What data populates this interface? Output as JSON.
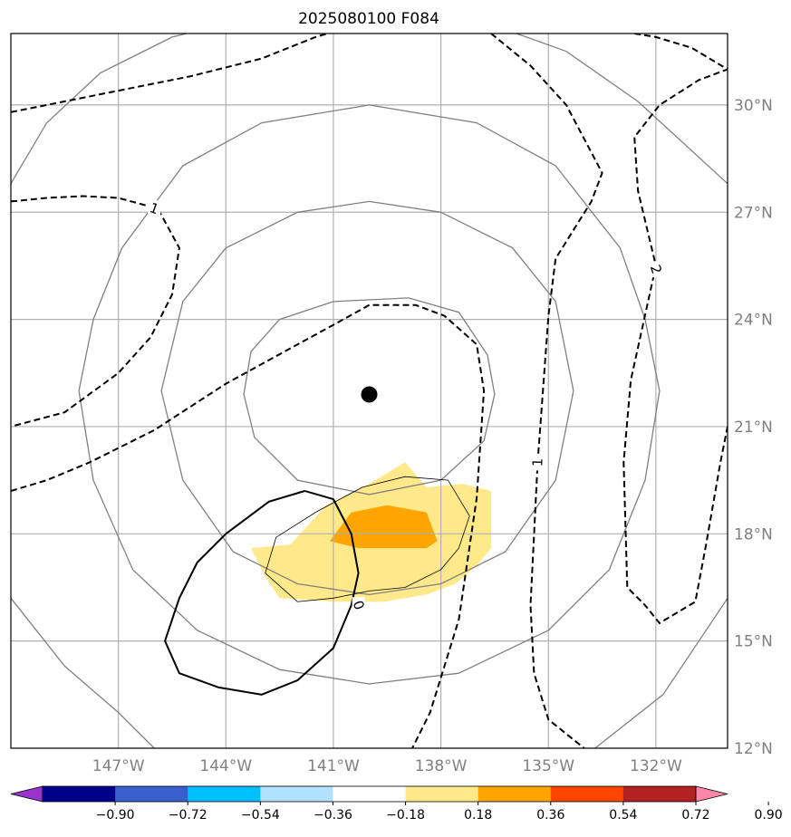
{
  "title": "2025080100 F084",
  "chart_data": {
    "type": "contour",
    "title": "2025080100 F084",
    "projection": "lat-lon map",
    "extent": {
      "lon": [
        -150,
        -130
      ],
      "lat": [
        12,
        32
      ]
    },
    "grid": true,
    "lon_ticks": [
      {
        "lon": -147,
        "label": "147°W"
      },
      {
        "lon": -144,
        "label": "144°W"
      },
      {
        "lon": -141,
        "label": "141°W"
      },
      {
        "lon": -138,
        "label": "138°W"
      },
      {
        "lon": -135,
        "label": "135°W"
      },
      {
        "lon": -132,
        "label": "132°W"
      }
    ],
    "lat_ticks": [
      {
        "lat": 12,
        "label": "12°N"
      },
      {
        "lat": 15,
        "label": "15°N"
      },
      {
        "lat": 18,
        "label": "18°N"
      },
      {
        "lat": 21,
        "label": "21°N"
      },
      {
        "lat": 24,
        "label": "24°N"
      },
      {
        "lat": 27,
        "label": "27°N"
      },
      {
        "lat": 30,
        "label": "30°N"
      }
    ],
    "center": {
      "lon": -140,
      "lat": 22
    },
    "range_rings": [
      {
        "ring": 1,
        "points": [
          [
            -138.9,
            24.6
          ],
          [
            -137.5,
            24.2
          ],
          [
            -136.7,
            23.0
          ],
          [
            -136.5,
            21.9
          ],
          [
            -136.8,
            20.6
          ],
          [
            -138.0,
            19.5
          ],
          [
            -140.0,
            19.1
          ],
          [
            -142.0,
            19.5
          ],
          [
            -143.2,
            20.7
          ],
          [
            -143.5,
            21.9
          ],
          [
            -143.3,
            23.1
          ],
          [
            -142.5,
            24.0
          ],
          [
            -141.0,
            24.5
          ]
        ]
      },
      {
        "ring": 2,
        "points": [
          [
            -140.0,
            27.3
          ],
          [
            -138.0,
            27.0
          ],
          [
            -136.0,
            26.0
          ],
          [
            -134.8,
            24.5
          ],
          [
            -134.3,
            22.0
          ],
          [
            -134.8,
            19.5
          ],
          [
            -136.2,
            17.5
          ],
          [
            -138.0,
            16.6
          ],
          [
            -140.0,
            16.3
          ],
          [
            -142.0,
            16.6
          ],
          [
            -143.8,
            17.5
          ],
          [
            -145.2,
            19.5
          ],
          [
            -145.8,
            22.0
          ],
          [
            -145.2,
            24.5
          ],
          [
            -144.0,
            26.0
          ],
          [
            -142.0,
            27.0
          ]
        ]
      },
      {
        "ring": 3,
        "points": [
          [
            -140.0,
            30.0
          ],
          [
            -137.0,
            29.5
          ],
          [
            -134.8,
            28.3
          ],
          [
            -133.0,
            26.0
          ],
          [
            -132.3,
            24.0
          ],
          [
            -131.9,
            22.0
          ],
          [
            -132.3,
            19.5
          ],
          [
            -133.3,
            17.0
          ],
          [
            -135.0,
            15.3
          ],
          [
            -137.5,
            14.1
          ],
          [
            -140.0,
            13.8
          ],
          [
            -142.5,
            14.2
          ],
          [
            -144.8,
            15.3
          ],
          [
            -146.6,
            17.0
          ],
          [
            -147.7,
            19.5
          ],
          [
            -148.1,
            22.0
          ],
          [
            -147.7,
            24.0
          ],
          [
            -146.9,
            26.0
          ],
          [
            -145.2,
            28.3
          ],
          [
            -143.0,
            29.5
          ]
        ]
      },
      {
        "ring": 4,
        "points": [
          [
            -140.0,
            32.7
          ],
          [
            -137.0,
            32.4
          ],
          [
            -134.5,
            31.5
          ],
          [
            -132.5,
            30.1
          ],
          [
            -130.0,
            27.8
          ]
        ],
        "closed": false
      },
      {
        "ring": 4.1,
        "points": [
          [
            -130.0,
            16.2
          ],
          [
            -131.8,
            13.5
          ],
          [
            -133.7,
            12.0
          ]
        ],
        "closed": false
      },
      {
        "ring": 4.2,
        "points": [
          [
            -150.0,
            27.8
          ],
          [
            -149.0,
            29.5
          ],
          [
            -147.5,
            30.9
          ],
          [
            -145.5,
            31.9
          ],
          [
            -143.5,
            32.4
          ],
          [
            -141.0,
            32.7
          ]
        ],
        "closed": false
      },
      {
        "ring": 4.3,
        "points": [
          [
            -150.0,
            16.2
          ],
          [
            -148.5,
            14.3
          ],
          [
            -147.0,
            13.0
          ],
          [
            -146.0,
            12.0
          ]
        ],
        "closed": false
      }
    ],
    "contours": [
      {
        "level": "1",
        "style": "dashed",
        "points": [
          [
            -150.0,
            27.3
          ],
          [
            -149.0,
            27.4
          ],
          [
            -148.0,
            27.45
          ],
          [
            -147.0,
            27.4
          ],
          [
            -145.9,
            27.1
          ],
          [
            -145.3,
            26.0
          ],
          [
            -145.5,
            24.7
          ],
          [
            -146.1,
            23.5
          ],
          [
            -147.0,
            22.5
          ],
          [
            -148.5,
            21.4
          ],
          [
            -150.0,
            21.0
          ]
        ]
      },
      {
        "level": "",
        "style": "dashed",
        "points": [
          [
            -150.0,
            29.8
          ],
          [
            -149.0,
            30.0
          ],
          [
            -147.0,
            30.4
          ],
          [
            -145.0,
            30.8
          ],
          [
            -143.0,
            31.3
          ],
          [
            -141.5,
            31.9
          ],
          [
            -139.5,
            32.5
          ]
        ]
      },
      {
        "level": "",
        "style": "dashed",
        "points": [
          [
            -150.0,
            19.2
          ],
          [
            -149.0,
            19.5
          ],
          [
            -147.8,
            20.0
          ],
          [
            -146.0,
            20.9
          ],
          [
            -144.0,
            22.2
          ],
          [
            -142.0,
            23.3
          ],
          [
            -140.9,
            23.9
          ],
          [
            -140.0,
            24.4
          ],
          [
            -138.7,
            24.4
          ],
          [
            -137.9,
            24.1
          ],
          [
            -137.0,
            23.3
          ],
          [
            -136.8,
            22.0
          ],
          [
            -137.0,
            19.0
          ],
          [
            -137.5,
            15.6
          ],
          [
            -138.3,
            13.0
          ],
          [
            -138.8,
            12.0
          ]
        ]
      },
      {
        "level": "1",
        "style": "dashed",
        "points": [
          [
            -136.6,
            32.0
          ],
          [
            -135.5,
            31.1
          ],
          [
            -134.5,
            30.0
          ],
          [
            -133.5,
            28.1
          ],
          [
            -133.8,
            27.3
          ],
          [
            -134.8,
            25.7
          ],
          [
            -135.0,
            24.1
          ],
          [
            -135.3,
            20.0
          ],
          [
            -135.5,
            16.0
          ],
          [
            -135.4,
            14.1
          ],
          [
            -135.0,
            12.8
          ],
          [
            -134.0,
            12.0
          ]
        ]
      },
      {
        "level": "2",
        "style": "dashed",
        "points": [
          [
            -132.6,
            32.0
          ],
          [
            -132.0,
            31.9
          ],
          [
            -131.0,
            31.6
          ],
          [
            -130.0,
            31.0
          ],
          [
            -130.8,
            30.7
          ],
          [
            -131.9,
            30.0
          ],
          [
            -132.6,
            29.1
          ],
          [
            -132.5,
            27.6
          ],
          [
            -132.0,
            25.5
          ],
          [
            -132.7,
            22.3
          ],
          [
            -132.9,
            20.0
          ],
          [
            -132.8,
            16.5
          ],
          [
            -132.3,
            16.0
          ],
          [
            -131.9,
            15.5
          ],
          [
            -130.9,
            16.1
          ],
          [
            -130.6,
            17.7
          ],
          [
            -130.2,
            20.0
          ],
          [
            -130.0,
            21.0
          ]
        ]
      },
      {
        "level": "0",
        "style": "solid",
        "points": [
          [
            -141.0,
            18.97
          ],
          [
            -140.5,
            18.0
          ],
          [
            -140.3,
            16.9
          ],
          [
            -140.5,
            16.0
          ],
          [
            -141.0,
            14.8
          ],
          [
            -142.0,
            13.9
          ],
          [
            -143.0,
            13.5
          ],
          [
            -144.2,
            13.7
          ],
          [
            -145.3,
            14.1
          ],
          [
            -145.7,
            15.0
          ],
          [
            -145.3,
            16.2
          ],
          [
            -144.8,
            17.2
          ],
          [
            -144.0,
            18.0
          ],
          [
            -142.8,
            18.9
          ],
          [
            -141.8,
            19.2
          ]
        ]
      },
      {
        "level": "",
        "style": "thin",
        "points": [
          [
            -142.0,
            16.1
          ],
          [
            -142.9,
            16.9
          ],
          [
            -142.6,
            17.9
          ],
          [
            -141.5,
            18.6
          ],
          [
            -140.2,
            19.3
          ],
          [
            -139.0,
            19.6
          ],
          [
            -137.8,
            19.5
          ],
          [
            -137.2,
            18.5
          ],
          [
            -137.5,
            17.6
          ],
          [
            -138.0,
            17.0
          ],
          [
            -139.0,
            16.5
          ],
          [
            -140.0,
            16.4
          ],
          [
            -141.0,
            16.2
          ]
        ]
      }
    ],
    "filled_regions": [
      {
        "range": [
          0.18,
          0.36
        ],
        "color": "#ffe98a",
        "points": [
          [
            -142.2,
            17.7
          ],
          [
            -141.2,
            18.8
          ],
          [
            -140.0,
            19.4
          ],
          [
            -139.0,
            20.0
          ],
          [
            -138.4,
            19.3
          ],
          [
            -137.4,
            19.4
          ],
          [
            -136.6,
            19.2
          ],
          [
            -136.6,
            17.6
          ],
          [
            -137.0,
            17.1
          ],
          [
            -137.6,
            16.6
          ],
          [
            -138.4,
            16.3
          ],
          [
            -139.6,
            16.1
          ],
          [
            -141.0,
            16.1
          ],
          [
            -142.5,
            16.2
          ],
          [
            -142.9,
            16.8
          ],
          [
            -143.3,
            17.6
          ]
        ]
      },
      {
        "range": [
          0.36,
          0.54
        ],
        "color": "#ffa500",
        "points": [
          [
            -141.1,
            17.8
          ],
          [
            -140.5,
            18.6
          ],
          [
            -139.5,
            18.8
          ],
          [
            -138.4,
            18.6
          ],
          [
            -138.1,
            17.8
          ],
          [
            -138.4,
            17.6
          ],
          [
            -139.3,
            17.6
          ],
          [
            -140.3,
            17.6
          ]
        ]
      }
    ],
    "center_marker": {
      "lon": -140.0,
      "lat": 21.9,
      "shape": "filled-circle",
      "color": "#000000"
    },
    "colorbar": {
      "labels": [
        "−0.90",
        "−0.72",
        "−0.54",
        "−0.36",
        "−0.18",
        "0.18",
        "0.36",
        "0.54",
        "0.72",
        "0.90"
      ],
      "colors": [
        "#9933cc",
        "#00008b",
        "#3a5fcd",
        "#00bfff",
        "#b0e2ff",
        "#ffffff",
        "#ffe98a",
        "#ffa500",
        "#ff4500",
        "#b22222",
        "#ff88aa"
      ],
      "extend": "both"
    }
  }
}
